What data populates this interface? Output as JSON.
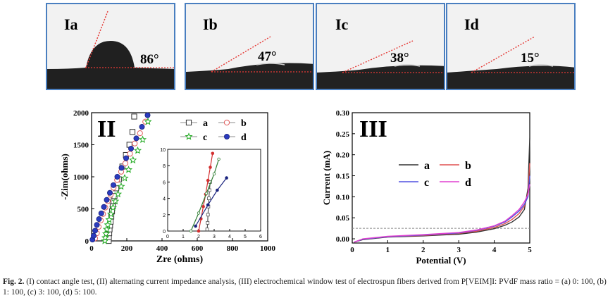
{
  "panel_I": {
    "images": [
      {
        "label": "Ia",
        "angle": "86°"
      },
      {
        "label": "Ib",
        "angle": "47°"
      },
      {
        "label": "Ic",
        "angle": "38°"
      },
      {
        "label": "Id",
        "angle": "15°"
      }
    ]
  },
  "colors": {
    "frame": "#4a7fc0",
    "fit_line": "#e53935",
    "accent_red": "#cc2222"
  },
  "chart_data": [
    {
      "type": "scatter",
      "panel_label": "II",
      "xlabel": "Zre (ohms)",
      "ylabel": "-Zim(ohms)",
      "xlim": [
        0,
        1000
      ],
      "ylim": [
        0,
        2000
      ],
      "xticks": [
        "0",
        "200",
        "400",
        "600",
        "800",
        "1000"
      ],
      "yticks": [
        "0",
        "500",
        "1000",
        "1500",
        "2000"
      ],
      "legend": [
        "a",
        "b",
        "c",
        "d"
      ],
      "series": [
        {
          "name": "a",
          "marker": "open-square",
          "x": [
            97,
            98,
            100,
            102,
            105,
            108,
            112,
            116,
            120,
            125,
            130,
            140,
            155,
            175,
            195,
            215,
            232,
            242
          ],
          "y": [
            0,
            60,
            120,
            180,
            240,
            300,
            380,
            460,
            540,
            620,
            700,
            820,
            960,
            1160,
            1340,
            1500,
            1700,
            1940
          ]
        },
        {
          "name": "b",
          "marker": "open-circle",
          "x": [
            20,
            30,
            40,
            52,
            65,
            78,
            92,
            108,
            125,
            145,
            168,
            192,
            218,
            245,
            275,
            305
          ],
          "y": [
            40,
            120,
            220,
            320,
            420,
            520,
            620,
            720,
            830,
            950,
            1080,
            1210,
            1360,
            1520,
            1680,
            1860
          ]
        },
        {
          "name": "c",
          "marker": "open-star",
          "x": [
            75,
            78,
            82,
            86,
            92,
            100,
            110,
            122,
            135,
            150,
            168,
            188,
            210,
            235,
            262,
            290,
            320
          ],
          "y": [
            0,
            50,
            110,
            180,
            250,
            330,
            420,
            520,
            620,
            730,
            850,
            980,
            1110,
            1260,
            1410,
            1580,
            1860
          ]
        },
        {
          "name": "d",
          "marker": "filled-circle",
          "x": [
            5,
            12,
            20,
            30,
            42,
            55,
            70,
            86,
            104,
            124,
            146,
            170,
            196,
            224,
            254,
            286,
            318
          ],
          "y": [
            20,
            80,
            160,
            250,
            340,
            430,
            530,
            640,
            750,
            870,
            1000,
            1140,
            1290,
            1440,
            1600,
            1780,
            1960
          ]
        }
      ],
      "inset": {
        "xlim": [
          0,
          6
        ],
        "ylim": [
          0,
          10
        ],
        "xticks": [
          "0",
          "1",
          "2",
          "3",
          "4",
          "5",
          "6"
        ],
        "yticks": [
          "0",
          "2",
          "4",
          "6",
          "8",
          "10"
        ],
        "series": [
          {
            "name": "a",
            "x": [
              2.55,
              2.58,
              2.6,
              2.63,
              2.66,
              2.7,
              2.74
            ],
            "y": [
              0.2,
              1.0,
              2.0,
              3.0,
              4.0,
              5.0,
              6.0
            ]
          },
          {
            "name": "b",
            "x": [
              2.0,
              2.15,
              2.3,
              2.45,
              2.6,
              2.75,
              2.9
            ],
            "y": [
              0.0,
              1.5,
              3.0,
              4.5,
              6.2,
              7.8,
              9.5
            ]
          },
          {
            "name": "c",
            "x": [
              1.5,
              2.0,
              2.5,
              3.0,
              3.3
            ],
            "y": [
              0.0,
              2.2,
              4.6,
              7.0,
              8.8
            ]
          },
          {
            "name": "d",
            "x": [
              1.8,
              2.6,
              3.2,
              3.8
            ],
            "y": [
              0.6,
              3.2,
              5.0,
              6.5
            ]
          }
        ]
      }
    },
    {
      "type": "line",
      "panel_label": "III",
      "xlabel": "Potential (V)",
      "ylabel": "Current (mA)",
      "xlim": [
        0,
        5
      ],
      "ylim": [
        -0.01,
        0.3
      ],
      "xticks": [
        "0",
        "1",
        "2",
        "3",
        "4",
        "5"
      ],
      "yticks": [
        "0.00",
        "0.05",
        "0.10",
        "0.15",
        "0.20",
        "0.25",
        "0.30"
      ],
      "reference_line_y": 0.025,
      "legend": [
        "a",
        "b",
        "c",
        "d"
      ],
      "series": [
        {
          "name": "a",
          "color": "#333333",
          "x": [
            0.05,
            0.3,
            1.0,
            2.0,
            3.0,
            3.5,
            4.0,
            4.3,
            4.5,
            4.7,
            4.85,
            4.95,
            5.0
          ],
          "y": [
            -0.008,
            -0.002,
            0.004,
            0.007,
            0.011,
            0.016,
            0.024,
            0.032,
            0.04,
            0.052,
            0.07,
            0.12,
            0.24
          ]
        },
        {
          "name": "b",
          "color": "#e05050",
          "x": [
            0.05,
            0.3,
            1.0,
            2.0,
            3.0,
            3.5,
            4.0,
            4.3,
            4.5,
            4.7,
            4.85,
            4.95,
            5.0
          ],
          "y": [
            -0.008,
            -0.001,
            0.005,
            0.008,
            0.013,
            0.018,
            0.027,
            0.036,
            0.046,
            0.06,
            0.078,
            0.11,
            0.18
          ]
        },
        {
          "name": "c",
          "color": "#5050e0",
          "x": [
            0.05,
            0.3,
            1.0,
            2.0,
            3.0,
            3.5,
            4.0,
            4.3,
            4.5,
            4.7,
            4.85,
            4.95,
            5.0
          ],
          "y": [
            -0.008,
            -0.001,
            0.005,
            0.009,
            0.014,
            0.02,
            0.03,
            0.04,
            0.052,
            0.066,
            0.082,
            0.1,
            0.15
          ]
        },
        {
          "name": "d",
          "color": "#e040d0",
          "x": [
            0.05,
            0.3,
            1.0,
            2.0,
            3.0,
            3.5,
            4.0,
            4.3,
            4.5,
            4.7,
            4.85,
            4.95,
            5.0
          ],
          "y": [
            -0.008,
            0.0,
            0.006,
            0.01,
            0.015,
            0.021,
            0.031,
            0.042,
            0.055,
            0.07,
            0.088,
            0.105,
            0.13
          ]
        }
      ]
    }
  ],
  "caption": {
    "figure_label": "Fig. 2.",
    "text": "(I) contact angle test, (II) alternating current impedance analysis, (III) electrochemical window test of electrospun fibers derived from P[VEIM]I: PVdF mass ratio = (a) 0: 100, (b) 1: 100, (c) 3: 100, (d) 5: 100."
  }
}
